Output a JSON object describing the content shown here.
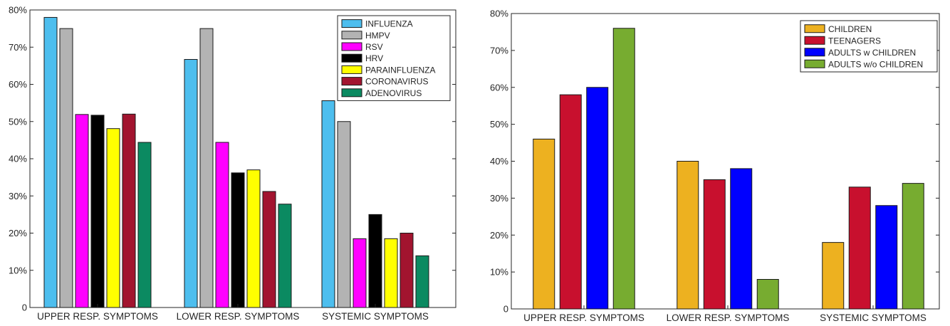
{
  "chart_data": [
    {
      "type": "bar",
      "categories": [
        "UPPER RESP. SYMPTOMS",
        "LOWER RESP. SYMPTOMS",
        "SYSTEMIC SYMPTOMS"
      ],
      "ylim": [
        0,
        80
      ],
      "yticks": [
        0,
        10,
        20,
        30,
        40,
        50,
        60,
        70,
        80
      ],
      "ytick_labels": [
        "0",
        "10%",
        "20%",
        "30%",
        "40%",
        "50%",
        "60%",
        "70%",
        "80%"
      ],
      "legend_position": "top-right",
      "series": [
        {
          "name": "INFLUENZA",
          "color": "#4dbeee",
          "values": [
            78,
            66.7,
            55.6
          ]
        },
        {
          "name": "HMPV",
          "color": "#b3b3b3",
          "values": [
            75,
            75,
            50
          ]
        },
        {
          "name": "RSV",
          "color": "#ff00ff",
          "values": [
            51.9,
            44.4,
            18.5
          ]
        },
        {
          "name": "HRV",
          "color": "#000000",
          "values": [
            51.7,
            36.2,
            25
          ]
        },
        {
          "name": "PARAINFLUENZA",
          "color": "#ffff00",
          "values": [
            48.1,
            37,
            18.5
          ]
        },
        {
          "name": "CORONAVIRUS",
          "color": "#a2142f",
          "values": [
            52,
            31.2,
            20
          ]
        },
        {
          "name": "ADENOVIRUS",
          "color": "#0b8a61",
          "values": [
            44.4,
            27.8,
            13.9
          ]
        }
      ]
    },
    {
      "type": "bar",
      "categories": [
        "UPPER RESP. SYMPTOMS",
        "LOWER RESP. SYMPTOMS",
        "SYSTEMIC SYMPTOMS"
      ],
      "ylim": [
        0,
        80
      ],
      "yticks": [
        0,
        10,
        20,
        30,
        40,
        50,
        60,
        70,
        80
      ],
      "ytick_labels": [
        "0",
        "10%",
        "20%",
        "30%",
        "40%",
        "50%",
        "60%",
        "70%",
        "80%"
      ],
      "legend_position": "top-right",
      "series": [
        {
          "name": "CHILDREN",
          "color": "#edb120",
          "values": [
            46,
            40,
            18
          ]
        },
        {
          "name": "TEENAGERS",
          "color": "#c8102e",
          "values": [
            58,
            35,
            33
          ]
        },
        {
          "name": "ADULTS w CHILDREN",
          "color": "#0000ff",
          "values": [
            60,
            38,
            28
          ]
        },
        {
          "name": "ADULTS w/o CHILDREN",
          "color": "#77ac30",
          "values": [
            76,
            8,
            34
          ]
        }
      ]
    }
  ]
}
